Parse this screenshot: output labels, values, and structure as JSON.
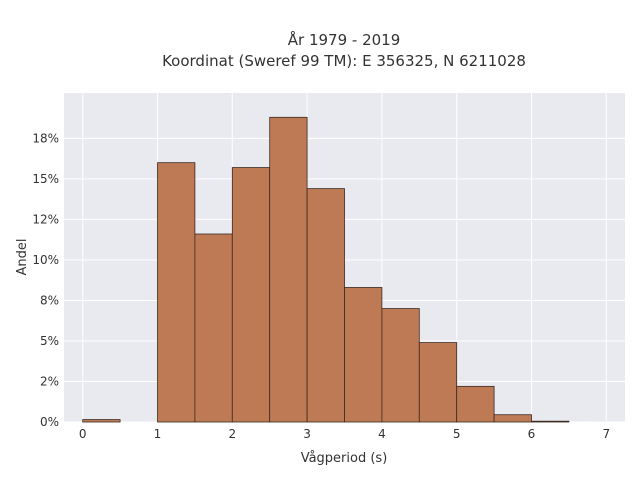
{
  "chart_data": {
    "type": "bar",
    "title_lines": [
      "År 1979 - 2019",
      "Koordinat (Sweref 99 TM): E 356325, N 6211028"
    ],
    "xlabel": "Vågperiod (s)",
    "ylabel": "Andel",
    "xlim": [
      -0.25,
      7.25
    ],
    "ylim": [
      0,
      20.3
    ],
    "x_ticks": [
      0,
      1,
      2,
      3,
      4,
      5,
      6,
      7
    ],
    "x_tick_labels": [
      "0",
      "1",
      "2",
      "3",
      "4",
      "5",
      "6",
      "7"
    ],
    "y_ticks": [
      0,
      2.5,
      5,
      7.5,
      10,
      12.5,
      15,
      17.5
    ],
    "y_tick_labels": [
      "0%",
      "2%",
      "5%",
      "8%",
      "10%",
      "12%",
      "15%",
      "18%"
    ],
    "bin_width": 0.5,
    "bins": [
      {
        "start": 0.0,
        "value": 0.15
      },
      {
        "start": 0.5,
        "value": 0.0
      },
      {
        "start": 1.0,
        "value": 16.0
      },
      {
        "start": 1.5,
        "value": 11.6
      },
      {
        "start": 2.0,
        "value": 15.7
      },
      {
        "start": 2.5,
        "value": 18.8
      },
      {
        "start": 3.0,
        "value": 14.4
      },
      {
        "start": 3.5,
        "value": 8.3
      },
      {
        "start": 4.0,
        "value": 7.0
      },
      {
        "start": 4.5,
        "value": 4.9
      },
      {
        "start": 5.0,
        "value": 2.2
      },
      {
        "start": 5.5,
        "value": 0.45
      },
      {
        "start": 6.0,
        "value": 0.05
      }
    ],
    "grid": true,
    "bar_color": "#bd7a55",
    "bar_edge_color": "#3a2a20",
    "plot_background": "#e9e9f0",
    "grid_color": "#ffffff"
  }
}
